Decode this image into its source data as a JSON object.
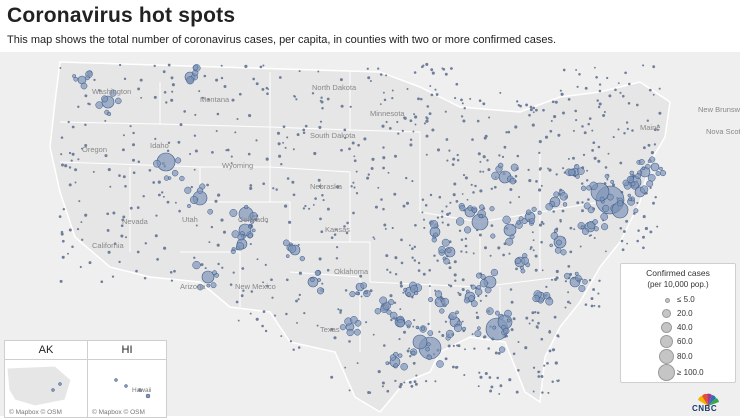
{
  "title": "Coronavirus hot spots",
  "subtitle": "This map shows the total number of coronavirus cases, per capita, in counties with two or more confirmed cases.",
  "colors": {
    "bubble_fill": "#8095b8",
    "bubble_stroke": "#3a5a8a",
    "land": "#efefef",
    "state_border": "#ffffff"
  },
  "map": {
    "state_labels": [
      "Washington",
      "Montana",
      "North Dakota",
      "Minnesota",
      "Oregon",
      "Idaho",
      "South Dakota",
      "Wyoming",
      "Nebraska",
      "Nevada",
      "Utah",
      "Colorado",
      "Kansas",
      "California",
      "Arizona",
      "New Mexico",
      "Oklahoma",
      "Texas",
      "New Brunswick",
      "Nova Scotia",
      "Maine"
    ],
    "insets": [
      {
        "label": "AK",
        "attribution": "© Mapbox © OSM"
      },
      {
        "label": "HI",
        "attribution": "© Mapbox © OSM",
        "place": "Hawaii"
      }
    ]
  },
  "legend": {
    "title": "Confirmed cases",
    "subtitle": "(per 10,000 pop.)",
    "items": [
      "≤ 5.0",
      "20.0",
      "40.0",
      "60.0",
      "80.0",
      "≥ 100.0"
    ]
  },
  "brand": {
    "logo_text": "CNBC"
  }
}
